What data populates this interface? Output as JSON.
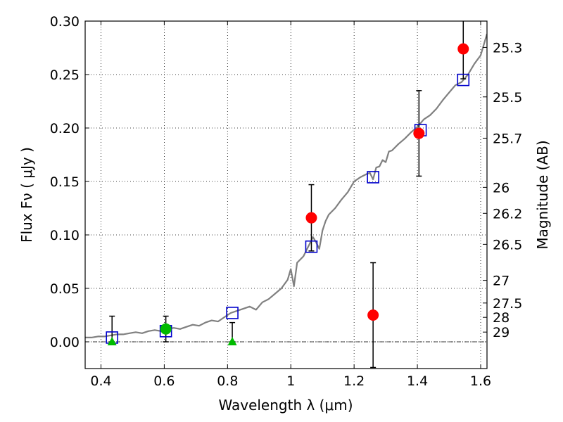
{
  "chart_data": {
    "type": "scatter",
    "xlabel": "Wavelength  λ (μm)",
    "ylabel_left": "Flux  Fν  ( μJy )",
    "ylabel_right": "Magnitude (AB)",
    "xlim": [
      0.35,
      1.62
    ],
    "ylim": [
      -0.025,
      0.3
    ],
    "grid": true,
    "x_ticks": [
      0.4,
      0.6,
      0.8,
      1.0,
      1.2,
      1.4,
      1.6
    ],
    "x_tick_labels": [
      "0.4",
      "0.6",
      "0.8",
      "1",
      "1.2",
      "1.4",
      "1.6"
    ],
    "y_ticks": [
      0.0,
      0.05,
      0.1,
      0.15,
      0.2,
      0.25,
      0.3
    ],
    "y_tick_labels": [
      "0.00",
      "0.05",
      "0.10",
      "0.15",
      "0.20",
      "0.25",
      "0.30"
    ],
    "mag_ticks": [
      {
        "label": "25.3",
        "flux": 0.2754
      },
      {
        "label": "25.5",
        "flux": 0.2291
      },
      {
        "label": "25.7",
        "flux": 0.1905
      },
      {
        "label": "26",
        "flux": 0.1445
      },
      {
        "label": "26.2",
        "flux": 0.1202
      },
      {
        "label": "26.5",
        "flux": 0.0912
      },
      {
        "label": "27",
        "flux": 0.0575
      },
      {
        "label": "27.5",
        "flux": 0.0363
      },
      {
        "label": "28",
        "flux": 0.0229
      },
      {
        "label": "29",
        "flux": 0.0091
      }
    ],
    "series": [
      {
        "name": "model-spectrum",
        "kind": "line",
        "color": "#808080",
        "x": [
          0.35,
          0.37,
          0.39,
          0.41,
          0.43,
          0.45,
          0.47,
          0.49,
          0.51,
          0.53,
          0.55,
          0.57,
          0.59,
          0.61,
          0.63,
          0.65,
          0.67,
          0.69,
          0.71,
          0.73,
          0.75,
          0.77,
          0.79,
          0.81,
          0.83,
          0.85,
          0.87,
          0.89,
          0.91,
          0.93,
          0.95,
          0.97,
          0.99,
          1.0,
          1.01,
          1.02,
          1.04,
          1.05,
          1.06,
          1.07,
          1.08,
          1.09,
          1.1,
          1.11,
          1.12,
          1.14,
          1.16,
          1.18,
          1.19,
          1.2,
          1.22,
          1.24,
          1.25,
          1.26,
          1.27,
          1.28,
          1.29,
          1.3,
          1.31,
          1.32,
          1.34,
          1.36,
          1.38,
          1.4,
          1.42,
          1.44,
          1.46,
          1.48,
          1.5,
          1.52,
          1.54,
          1.56,
          1.58,
          1.6,
          1.62
        ],
        "y": [
          0.004,
          0.004,
          0.005,
          0.005,
          0.006,
          0.007,
          0.007,
          0.008,
          0.009,
          0.008,
          0.01,
          0.011,
          0.01,
          0.012,
          0.013,
          0.012,
          0.014,
          0.016,
          0.015,
          0.018,
          0.02,
          0.019,
          0.023,
          0.027,
          0.029,
          0.031,
          0.033,
          0.03,
          0.037,
          0.04,
          0.045,
          0.05,
          0.058,
          0.068,
          0.052,
          0.074,
          0.08,
          0.086,
          0.092,
          0.098,
          0.093,
          0.087,
          0.104,
          0.113,
          0.119,
          0.125,
          0.133,
          0.14,
          0.145,
          0.15,
          0.154,
          0.157,
          0.158,
          0.152,
          0.163,
          0.164,
          0.17,
          0.168,
          0.178,
          0.179,
          0.185,
          0.19,
          0.196,
          0.201,
          0.208,
          0.212,
          0.218,
          0.226,
          0.233,
          0.24,
          0.243,
          0.25,
          0.26,
          0.268,
          0.288
        ]
      },
      {
        "name": "model-photometry",
        "kind": "open-square",
        "color": "#0000cc",
        "x": [
          0.435,
          0.605,
          0.815,
          1.065,
          1.26,
          1.41,
          1.545
        ],
        "y": [
          0.004,
          0.01,
          0.027,
          0.089,
          0.154,
          0.198,
          0.245
        ]
      },
      {
        "name": "detections-red",
        "kind": "circle",
        "color": "#ff0000",
        "x": [
          1.065,
          1.26,
          1.405,
          1.545
        ],
        "y": [
          0.116,
          0.025,
          0.195,
          0.274
        ],
        "yerr": [
          0.031,
          0.049,
          0.04,
          0.028
        ]
      },
      {
        "name": "detections-green",
        "kind": "circle",
        "color": "#00bb00",
        "x": [
          0.605
        ],
        "y": [
          0.012
        ],
        "yerr": [
          0.012
        ]
      },
      {
        "name": "limits-green",
        "kind": "triangle",
        "color": "#00bb00",
        "x": [
          0.435,
          0.815
        ],
        "y": [
          0.0,
          0.0
        ],
        "yerr_up": [
          0.024,
          0.018
        ]
      }
    ]
  }
}
